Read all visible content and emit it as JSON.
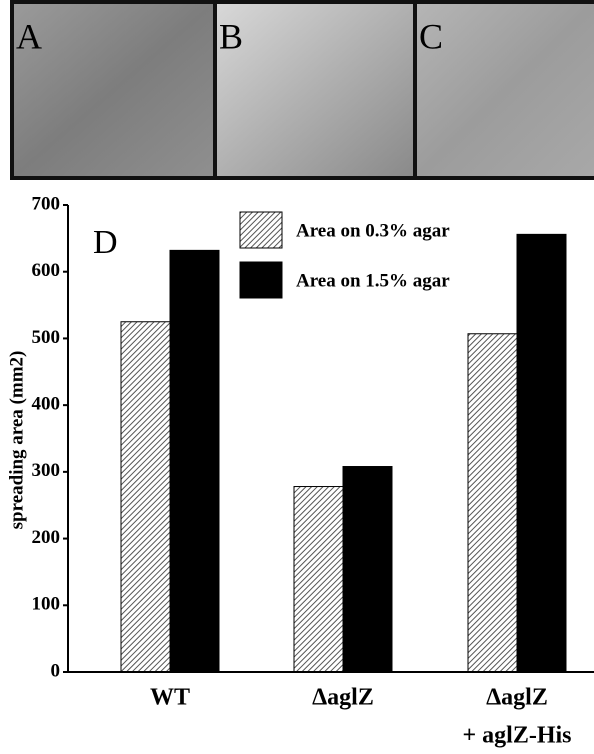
{
  "panel_labels": [
    "A",
    "B",
    "C"
  ],
  "chart_data": {
    "type": "bar",
    "panel_label": "D",
    "ylabel": "spreading area (mm2)",
    "categories": [
      [
        "WT"
      ],
      [
        "ΔaglZ"
      ],
      [
        "ΔaglZ",
        "+ aglZ-His"
      ]
    ],
    "series": [
      {
        "name": "Area on 0.3% agar",
        "color": "hatch",
        "values": [
          525,
          278,
          507
        ]
      },
      {
        "name": "Area on 1.5% agar",
        "color": "#000000",
        "values": [
          632,
          308,
          656
        ]
      }
    ],
    "ylim": [
      0,
      700
    ],
    "yticks": [
      0,
      100,
      200,
      300,
      400,
      500,
      600,
      700
    ]
  }
}
